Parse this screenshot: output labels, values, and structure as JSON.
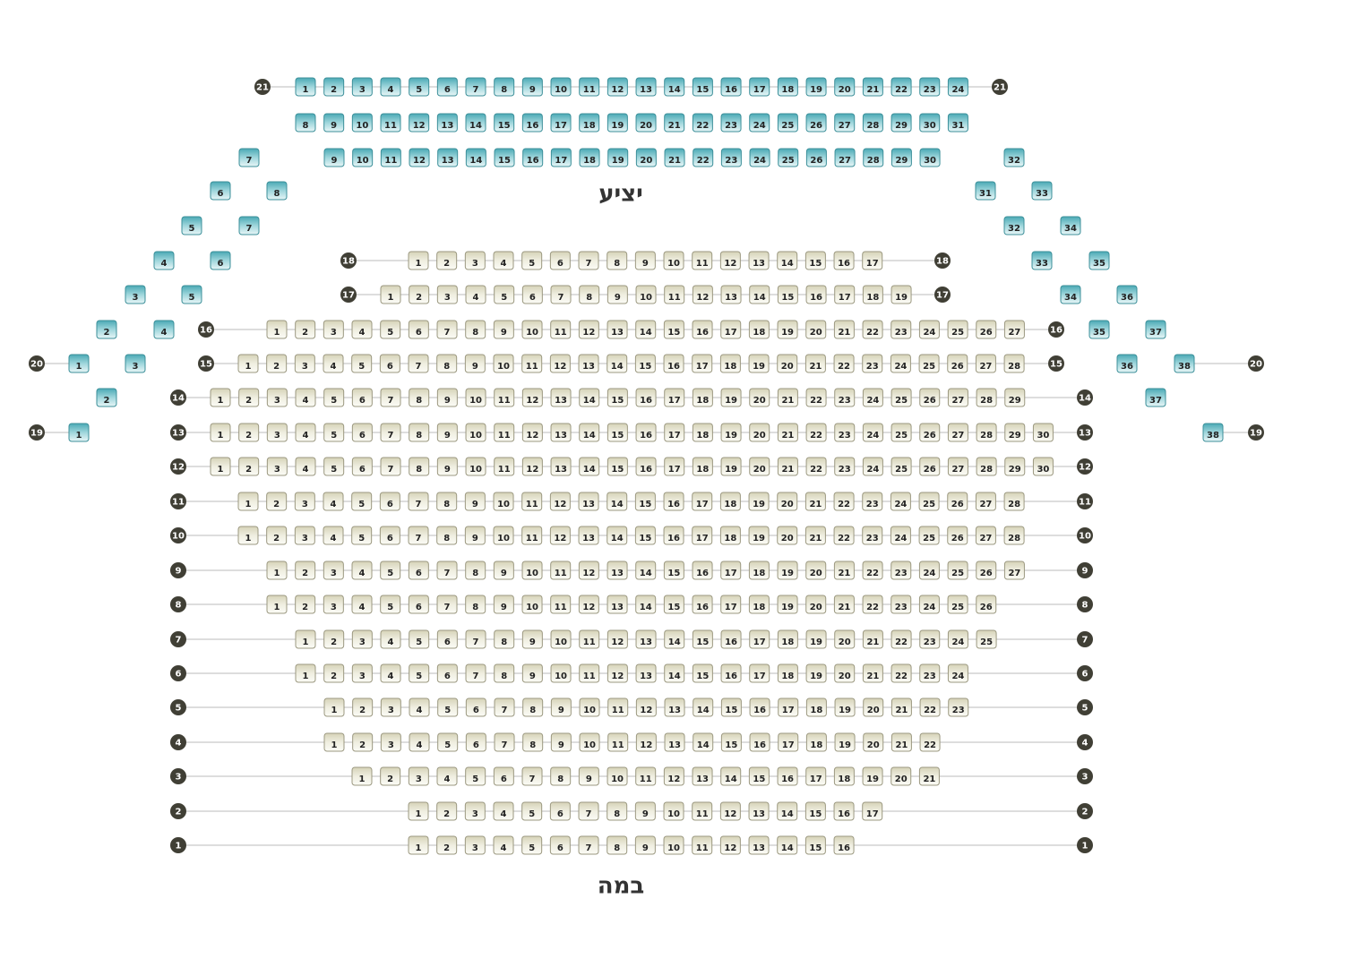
{
  "balcony": {
    "label": "יציע",
    "rows": [
      {
        "label": 21,
        "seats": [
          1,
          2,
          3,
          4,
          5,
          6,
          7,
          8,
          9,
          10,
          11,
          12,
          13,
          14,
          15,
          16,
          17,
          18,
          19,
          20,
          21,
          22,
          23,
          24
        ]
      },
      {
        "seats": [
          8,
          9,
          10,
          11,
          12,
          13,
          14,
          15,
          16,
          17,
          18,
          19,
          20,
          21,
          22,
          23,
          24,
          25,
          26,
          27,
          28,
          29,
          30,
          31
        ]
      },
      {
        "seats": [
          9,
          10,
          11,
          12,
          13,
          14,
          15,
          16,
          17,
          18,
          19,
          20,
          21,
          22,
          23,
          24,
          25,
          26,
          27,
          28,
          29,
          30
        ]
      },
      {
        "seats": [
          7
        ]
      },
      {
        "seats": [
          32
        ]
      },
      {
        "seats": [
          6
        ]
      },
      {
        "seats": [
          8
        ]
      },
      {
        "seats": [
          31
        ]
      },
      {
        "seats": [
          33
        ]
      },
      {
        "seats": [
          5
        ]
      },
      {
        "seats": [
          7
        ]
      },
      {
        "seats": [
          32
        ]
      },
      {
        "seats": [
          34
        ]
      },
      {
        "seats": [
          4
        ]
      },
      {
        "seats": [
          6
        ]
      },
      {
        "seats": [
          33
        ]
      },
      {
        "seats": [
          35
        ]
      },
      {
        "seats": [
          3
        ]
      },
      {
        "seats": [
          5
        ]
      },
      {
        "seats": [
          34
        ]
      },
      {
        "seats": [
          36
        ]
      },
      {
        "seats": [
          2
        ]
      },
      {
        "seats": [
          4
        ]
      },
      {
        "seats": [
          35
        ]
      },
      {
        "seats": [
          37
        ]
      },
      {
        "label": 20,
        "seats": [
          1
        ]
      },
      {
        "seats": [
          3
        ]
      },
      {
        "seats": [
          36
        ]
      },
      {
        "label": 20,
        "seats": [
          38
        ]
      },
      {
        "seats": [
          2
        ]
      },
      {
        "seats": [
          37
        ]
      },
      {
        "label": 19,
        "seats": [
          1
        ]
      },
      {
        "label": 19,
        "seats": [
          38
        ]
      }
    ]
  },
  "orchestra": {
    "rows": [
      {
        "label": 18,
        "seats": [
          1,
          2,
          3,
          4,
          5,
          6,
          7,
          8,
          9,
          10,
          11,
          12,
          13,
          14,
          15,
          16,
          17
        ]
      },
      {
        "label": 17,
        "seats": [
          1,
          2,
          3,
          4,
          5,
          6,
          7,
          8,
          9,
          10,
          11,
          12,
          13,
          14,
          15,
          16,
          17,
          18,
          19
        ]
      },
      {
        "label": 16,
        "seats": [
          1,
          2,
          3,
          4,
          5,
          6,
          7,
          8,
          9,
          10,
          11,
          12,
          13,
          14,
          15,
          16,
          17,
          18,
          19,
          20,
          21,
          22,
          23,
          24,
          25,
          26,
          27
        ]
      },
      {
        "label": 15,
        "seats": [
          1,
          2,
          3,
          4,
          5,
          6,
          7,
          8,
          9,
          10,
          11,
          12,
          13,
          14,
          15,
          16,
          17,
          18,
          19,
          20,
          21,
          22,
          23,
          24,
          25,
          26,
          27,
          28
        ]
      },
      {
        "label": 14,
        "seats": [
          1,
          2,
          3,
          4,
          5,
          6,
          7,
          8,
          9,
          10,
          11,
          12,
          13,
          14,
          15,
          16,
          17,
          18,
          19,
          20,
          21,
          22,
          23,
          24,
          25,
          26,
          27,
          28,
          29
        ]
      },
      {
        "label": 13,
        "seats": [
          1,
          2,
          3,
          4,
          5,
          6,
          7,
          8,
          9,
          10,
          11,
          12,
          13,
          14,
          15,
          16,
          17,
          18,
          19,
          20,
          21,
          22,
          23,
          24,
          25,
          26,
          27,
          28,
          29,
          30
        ]
      },
      {
        "label": 12,
        "seats": [
          1,
          2,
          3,
          4,
          5,
          6,
          7,
          8,
          9,
          10,
          11,
          12,
          13,
          14,
          15,
          16,
          17,
          18,
          19,
          20,
          21,
          22,
          23,
          24,
          25,
          26,
          27,
          28,
          29,
          30
        ]
      },
      {
        "label": 11,
        "seats": [
          1,
          2,
          3,
          4,
          5,
          6,
          7,
          8,
          9,
          10,
          11,
          12,
          13,
          14,
          15,
          16,
          17,
          18,
          19,
          20,
          21,
          22,
          23,
          24,
          25,
          26,
          27,
          28
        ]
      },
      {
        "label": 10,
        "seats": [
          1,
          2,
          3,
          4,
          5,
          6,
          7,
          8,
          9,
          10,
          11,
          12,
          13,
          14,
          15,
          16,
          17,
          18,
          19,
          20,
          21,
          22,
          23,
          24,
          25,
          26,
          27,
          28
        ]
      },
      {
        "label": 9,
        "seats": [
          1,
          2,
          3,
          4,
          5,
          6,
          7,
          8,
          9,
          10,
          11,
          12,
          13,
          14,
          15,
          16,
          17,
          18,
          19,
          20,
          21,
          22,
          23,
          24,
          25,
          26,
          27
        ]
      },
      {
        "label": 8,
        "seats": [
          1,
          2,
          3,
          4,
          5,
          6,
          7,
          8,
          9,
          10,
          11,
          12,
          13,
          14,
          15,
          16,
          17,
          18,
          19,
          20,
          21,
          22,
          23,
          24,
          25,
          26
        ]
      },
      {
        "label": 7,
        "seats": [
          1,
          2,
          3,
          4,
          5,
          6,
          7,
          8,
          9,
          10,
          11,
          12,
          13,
          14,
          15,
          16,
          17,
          18,
          19,
          20,
          21,
          22,
          23,
          24,
          25
        ]
      },
      {
        "label": 6,
        "seats": [
          1,
          2,
          3,
          4,
          5,
          6,
          7,
          8,
          9,
          10,
          11,
          12,
          13,
          14,
          15,
          16,
          17,
          18,
          19,
          20,
          21,
          22,
          23,
          24
        ]
      },
      {
        "label": 5,
        "seats": [
          1,
          2,
          3,
          4,
          5,
          6,
          7,
          8,
          9,
          10,
          11,
          12,
          13,
          14,
          15,
          16,
          17,
          18,
          19,
          20,
          21,
          22,
          23
        ]
      },
      {
        "label": 4,
        "seats": [
          1,
          2,
          3,
          4,
          5,
          6,
          7,
          8,
          9,
          10,
          11,
          12,
          13,
          14,
          15,
          16,
          17,
          18,
          19,
          20,
          21,
          22
        ]
      },
      {
        "label": 3,
        "seats": [
          1,
          2,
          3,
          4,
          5,
          6,
          7,
          8,
          9,
          10,
          11,
          12,
          13,
          14,
          15,
          16,
          17,
          18,
          19,
          20,
          21
        ]
      },
      {
        "label": 2,
        "seats": [
          1,
          2,
          3,
          4,
          5,
          6,
          7,
          8,
          9,
          10,
          11,
          12,
          13,
          14,
          15,
          16,
          17
        ]
      },
      {
        "label": 1,
        "seats": [
          1,
          2,
          3,
          4,
          5,
          6,
          7,
          8,
          9,
          10,
          11,
          12,
          13,
          14,
          15,
          16
        ]
      }
    ]
  },
  "stage": "במה"
}
